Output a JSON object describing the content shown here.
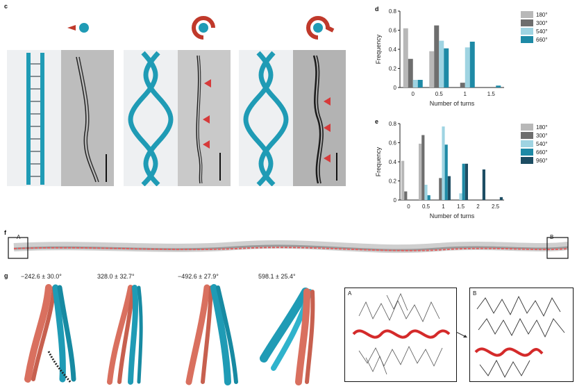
{
  "panel_labels": {
    "c": "c",
    "d": "d",
    "e": "e",
    "f": "f",
    "g": "g"
  },
  "colors": {
    "teal": "#1f9bb5",
    "red": "#c0392b",
    "salmon": "#d9705f",
    "dark": "#111111"
  },
  "chart_data": [
    {
      "type": "bar",
      "title": "",
      "xlabel": "Number of turns",
      "ylabel": "Frequency",
      "categories": [
        "0",
        "0.5",
        "1",
        "1.5"
      ],
      "ylim": [
        0,
        0.8
      ],
      "yticks": [
        "0",
        "0.2",
        "0.4",
        "0.6",
        "0.8"
      ],
      "legend_position": "right",
      "series": [
        {
          "name": "180°",
          "color": "#b8b8b8",
          "values": [
            0.62,
            0.38,
            0.0,
            0.0
          ]
        },
        {
          "name": "300°",
          "color": "#6e6e6e",
          "values": [
            0.3,
            0.65,
            0.05,
            0.0
          ]
        },
        {
          "name": "540°",
          "color": "#9fd4e2",
          "values": [
            0.08,
            0.49,
            0.42,
            0.0
          ]
        },
        {
          "name": "660°",
          "color": "#1e8aa6",
          "values": [
            0.08,
            0.41,
            0.48,
            0.02
          ]
        }
      ]
    },
    {
      "type": "bar",
      "title": "",
      "xlabel": "Number of turns",
      "ylabel": "Frequency",
      "categories": [
        "0",
        "0.5",
        "1",
        "1.5",
        "2",
        "2.5"
      ],
      "ylim": [
        0,
        0.8
      ],
      "yticks": [
        "0",
        "0.2",
        "0.4",
        "0.6",
        "0.8"
      ],
      "legend_position": "right",
      "series": [
        {
          "name": "180°",
          "color": "#b8b8b8",
          "values": [
            0.41,
            0.59,
            0.0,
            0.0,
            0.0,
            0.0
          ]
        },
        {
          "name": "300°",
          "color": "#6e6e6e",
          "values": [
            0.09,
            0.68,
            0.23,
            0.0,
            0.0,
            0.0
          ]
        },
        {
          "name": "540°",
          "color": "#9fd4e2",
          "values": [
            0.0,
            0.16,
            0.77,
            0.07,
            0.0,
            0.0
          ]
        },
        {
          "name": "660°",
          "color": "#1e8aa6",
          "values": [
            0.0,
            0.05,
            0.58,
            0.38,
            0.0,
            0.0
          ]
        },
        {
          "name": "960°",
          "color": "#1d4d63",
          "values": [
            0.0,
            0.0,
            0.25,
            0.38,
            0.32,
            0.03
          ]
        }
      ]
    }
  ],
  "panel_f": {
    "inset_a": "A",
    "inset_b": "B"
  },
  "panel_g": {
    "angles": [
      "−242.6 ± 30.0°",
      "328.0 ± 32.7°",
      "−492.6 ± 27.9°",
      "598.1 ± 25.4°"
    ],
    "inset_a": "A",
    "inset_b": "B"
  }
}
